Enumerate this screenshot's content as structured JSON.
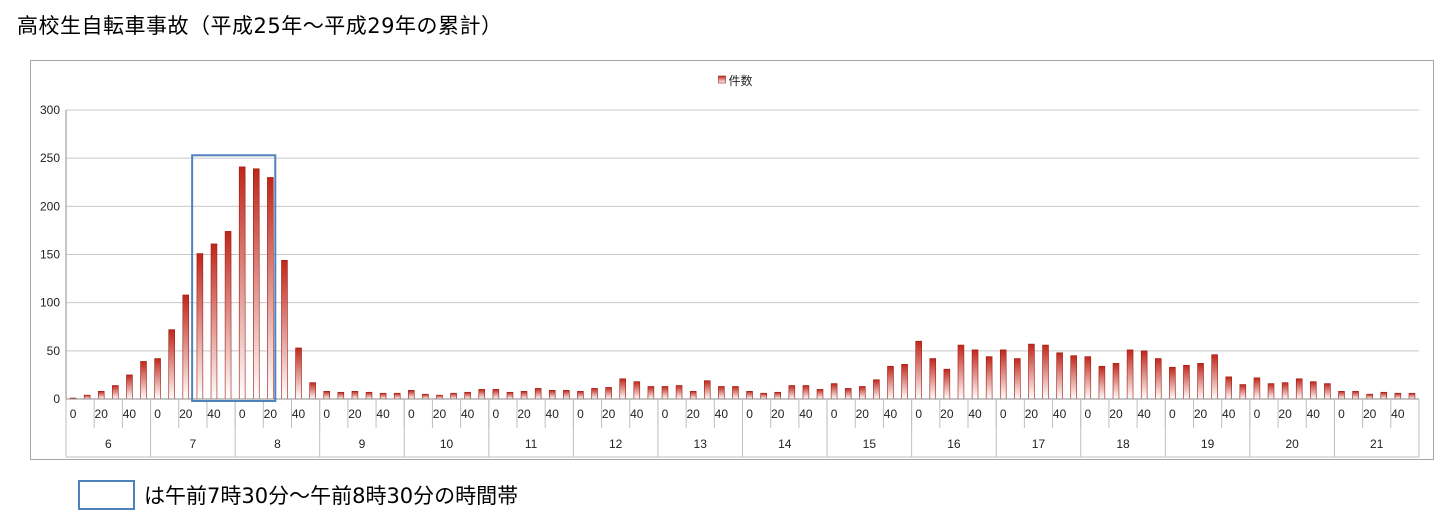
{
  "title": "高校生自転車事故（平成25年～平成29年の累計）",
  "highlight_note": "は午前7時30分～午前8時30分の時間帯",
  "colors": {
    "bar_top": "#c0261a",
    "bar_bottom": "#ffffff",
    "bar_stroke": "#9b1b12",
    "highlight_box": "#4f81bd",
    "grid": "#c8c8c8",
    "frame": "#a6a6a6"
  },
  "chart_data": {
    "type": "bar",
    "title": "",
    "xlabel": "",
    "ylabel": "",
    "ylim": [
      0,
      300
    ],
    "yticks": [
      0,
      50,
      100,
      150,
      200,
      250,
      300
    ],
    "grid": true,
    "legend_position": "top-center",
    "hours": [
      "6",
      "7",
      "8",
      "9",
      "10",
      "11",
      "12",
      "13",
      "14",
      "15",
      "16",
      "17",
      "18",
      "19",
      "20",
      "21"
    ],
    "minute_labels": [
      "0",
      "",
      "20",
      "",
      "40",
      ""
    ],
    "series": [
      {
        "name": "件数",
        "values": [
          1,
          4,
          8,
          14,
          25,
          39,
          42,
          72,
          108,
          151,
          161,
          174,
          241,
          239,
          230,
          144,
          53,
          17,
          8,
          7,
          8,
          7,
          6,
          6,
          9,
          5,
          4,
          6,
          7,
          10,
          10,
          7,
          8,
          11,
          9,
          9,
          8,
          11,
          12,
          21,
          18,
          13,
          13,
          14,
          8,
          19,
          13,
          13,
          8,
          6,
          7,
          14,
          14,
          10,
          16,
          11,
          13,
          20,
          34,
          36,
          60,
          42,
          31,
          56,
          51,
          44,
          51,
          42,
          57,
          56,
          48,
          45,
          44,
          34,
          37,
          51,
          50,
          42,
          33,
          35,
          37,
          46,
          23,
          15,
          22,
          16,
          17,
          21,
          18,
          16,
          8,
          8,
          5,
          7,
          6,
          6
        ]
      }
    ],
    "highlight": {
      "from": "7:30",
      "to": "8:30"
    }
  }
}
